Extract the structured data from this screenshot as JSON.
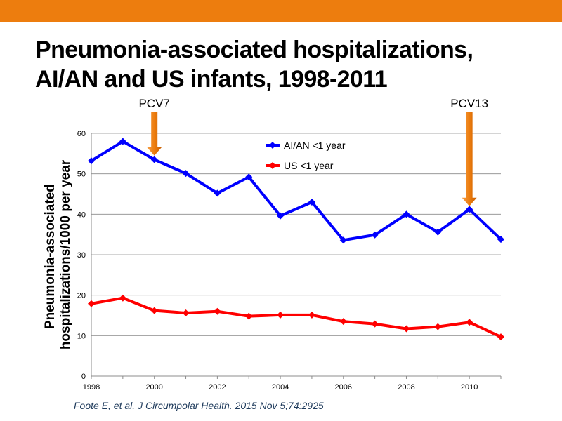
{
  "slide": {
    "accent_color": "#ed7d0e",
    "title": "Pneumonia-associated hospitalizations, AI/AN and US infants, 1998-2011",
    "citation": {
      "authors": "Foote E, et al.",
      "reference": "J Circumpolar Health. 2015 Nov 5;74:2925"
    }
  },
  "chart_data": {
    "type": "line",
    "title": "",
    "xlabel": "",
    "ylabel_lines": [
      "Pneumonia-associated",
      "hospitalizations/1000 per year"
    ],
    "xlim": [
      1998,
      2011
    ],
    "ylim": [
      0,
      60
    ],
    "x_ticks": [
      "1998",
      "2000",
      "2002",
      "2004",
      "2006",
      "2008",
      "2010"
    ],
    "y_ticks": [
      "0",
      "10",
      "20",
      "30",
      "40",
      "50",
      "60"
    ],
    "grid": true,
    "legend_position": "top-center",
    "x": [
      1998,
      1999,
      2000,
      2001,
      2002,
      2003,
      2004,
      2005,
      2006,
      2007,
      2008,
      2009,
      2010,
      2011
    ],
    "series": [
      {
        "name": "AI/AN <1 year",
        "color": "#0000ff",
        "values": [
          53.2,
          58.0,
          53.5,
          50.1,
          45.2,
          49.2,
          39.6,
          43.0,
          33.6,
          34.9,
          40.0,
          35.6,
          41.2,
          33.8
        ]
      },
      {
        "name": "US <1 year",
        "color": "#ff0000",
        "values": [
          17.9,
          19.3,
          16.2,
          15.6,
          16.0,
          14.8,
          15.1,
          15.1,
          13.5,
          12.9,
          11.7,
          12.2,
          13.3,
          9.7
        ]
      }
    ],
    "annotations": [
      {
        "label": "PCV7",
        "x": 2000,
        "y_tip": 54.5,
        "color": "#ed7d0e"
      },
      {
        "label": "PCV13",
        "x": 2010,
        "y_tip": 42.0,
        "color": "#ed7d0e"
      }
    ]
  }
}
